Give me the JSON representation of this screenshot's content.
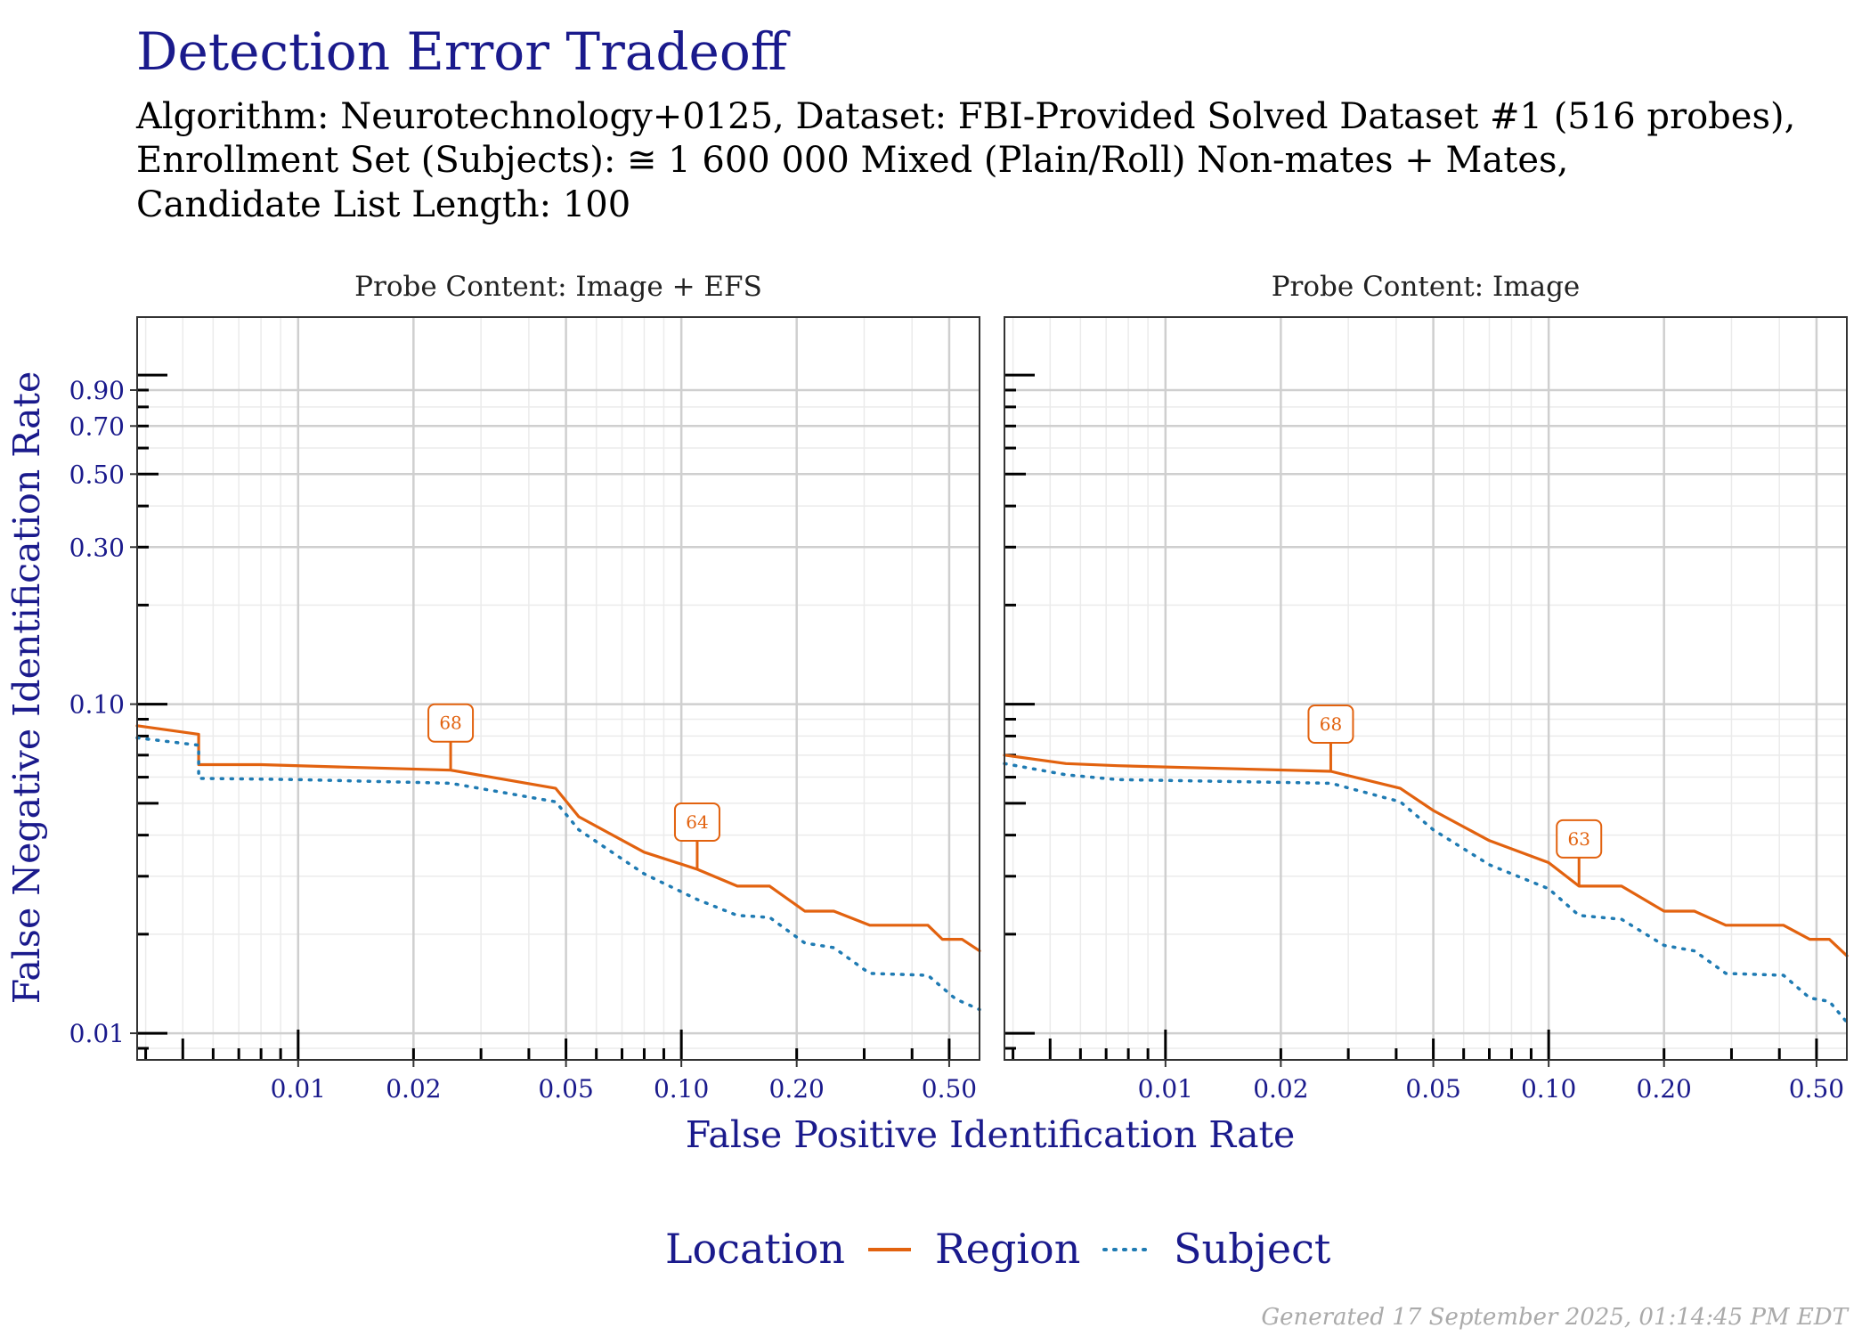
{
  "chart_data": {
    "type": "line",
    "title": "Detection Error Tradeoff",
    "subtitle_lines": [
      "Algorithm: Neurotechnology+0125, Dataset: FBI-Provided Solved Dataset #1 (516 probes),",
      "Enrollment Set (Subjects): ≅ 1 600 000 Mixed (Plain/Roll) Non-mates + Mates,",
      "Candidate List Length: 100"
    ],
    "xlabel": "False Positive Identification Rate",
    "ylabel": "False Negative Identification Rate",
    "x_scale": "log",
    "y_scale": "log",
    "xlim": [
      0.0038,
      0.6
    ],
    "ylim": [
      0.0083,
      1.5
    ],
    "x_ticks": [
      0.01,
      0.02,
      0.05,
      0.1,
      0.2,
      0.5
    ],
    "x_tick_labels": [
      "0.01",
      "0.02",
      "0.05",
      "0.10",
      "0.20",
      "0.50"
    ],
    "y_ticks": [
      0.01,
      0.1,
      0.3,
      0.5,
      0.7,
      0.9
    ],
    "y_tick_labels": [
      "0.01",
      "0.10",
      "0.30",
      "0.50",
      "0.70",
      "0.90"
    ],
    "grid": true,
    "legend": {
      "title": "Location",
      "position": "bottom",
      "entries": [
        {
          "name": "Region",
          "color": "#e2620f",
          "style": "solid"
        },
        {
          "name": "Subject",
          "color": "#1f7bb3",
          "style": "dotted"
        }
      ]
    },
    "footer": "Generated 17 September 2025, 01:14:45 PM EDT",
    "panels": [
      {
        "strip": "Probe Content: Image + EFS",
        "series": [
          {
            "name": "Region",
            "color": "#e2620f",
            "style": "solid",
            "points": [
              [
                0.0038,
                0.086
              ],
              [
                0.0055,
                0.081
              ],
              [
                0.0055,
                0.0655
              ],
              [
                0.008,
                0.0655
              ],
              [
                0.025,
                0.063
              ],
              [
                0.047,
                0.0555
              ],
              [
                0.054,
                0.0455
              ],
              [
                0.08,
                0.0355
              ],
              [
                0.11,
                0.0315
              ],
              [
                0.14,
                0.028
              ],
              [
                0.17,
                0.028
              ],
              [
                0.21,
                0.0235
              ],
              [
                0.25,
                0.0235
              ],
              [
                0.31,
                0.0213
              ],
              [
                0.44,
                0.0213
              ],
              [
                0.48,
                0.0193
              ],
              [
                0.54,
                0.0193
              ],
              [
                0.6,
                0.0178
              ]
            ]
          },
          {
            "name": "Subject",
            "color": "#1f7bb3",
            "style": "dotted",
            "points": [
              [
                0.0038,
                0.079
              ],
              [
                0.0055,
                0.075
              ],
              [
                0.0055,
                0.0595
              ],
              [
                0.01,
                0.059
              ],
              [
                0.025,
                0.0575
              ],
              [
                0.047,
                0.0505
              ],
              [
                0.054,
                0.0415
              ],
              [
                0.08,
                0.0305
              ],
              [
                0.11,
                0.0255
              ],
              [
                0.14,
                0.0228
              ],
              [
                0.17,
                0.0225
              ],
              [
                0.21,
                0.0188
              ],
              [
                0.25,
                0.0182
              ],
              [
                0.31,
                0.0152
              ],
              [
                0.44,
                0.015
              ],
              [
                0.52,
                0.0127
              ],
              [
                0.6,
                0.0118
              ]
            ]
          }
        ],
        "labels": [
          {
            "text": "68",
            "x": 0.025,
            "y": 0.063
          },
          {
            "text": "64",
            "x": 0.11,
            "y": 0.0315
          }
        ]
      },
      {
        "strip": "Probe Content: Image",
        "series": [
          {
            "name": "Region",
            "color": "#e2620f",
            "style": "solid",
            "points": [
              [
                0.0038,
                0.07
              ],
              [
                0.0055,
                0.066
              ],
              [
                0.0075,
                0.065
              ],
              [
                0.027,
                0.0625
              ],
              [
                0.041,
                0.0555
              ],
              [
                0.05,
                0.0475
              ],
              [
                0.07,
                0.0385
              ],
              [
                0.1,
                0.033
              ],
              [
                0.12,
                0.028
              ],
              [
                0.155,
                0.028
              ],
              [
                0.2,
                0.0235
              ],
              [
                0.24,
                0.0235
              ],
              [
                0.29,
                0.0213
              ],
              [
                0.41,
                0.0213
              ],
              [
                0.48,
                0.0193
              ],
              [
                0.54,
                0.0193
              ],
              [
                0.6,
                0.0172
              ]
            ]
          },
          {
            "name": "Subject",
            "color": "#1f7bb3",
            "style": "dotted",
            "points": [
              [
                0.0038,
                0.066
              ],
              [
                0.0055,
                0.061
              ],
              [
                0.0075,
                0.059
              ],
              [
                0.027,
                0.0575
              ],
              [
                0.041,
                0.0505
              ],
              [
                0.05,
                0.0415
              ],
              [
                0.07,
                0.0325
              ],
              [
                0.1,
                0.0275
              ],
              [
                0.12,
                0.0228
              ],
              [
                0.155,
                0.0222
              ],
              [
                0.2,
                0.0185
              ],
              [
                0.24,
                0.0178
              ],
              [
                0.29,
                0.0152
              ],
              [
                0.41,
                0.015
              ],
              [
                0.48,
                0.0128
              ],
              [
                0.54,
                0.0125
              ],
              [
                0.6,
                0.0108
              ]
            ]
          }
        ],
        "labels": [
          {
            "text": "68",
            "x": 0.027,
            "y": 0.0625
          },
          {
            "text": "63",
            "x": 0.12,
            "y": 0.028
          }
        ]
      }
    ]
  }
}
